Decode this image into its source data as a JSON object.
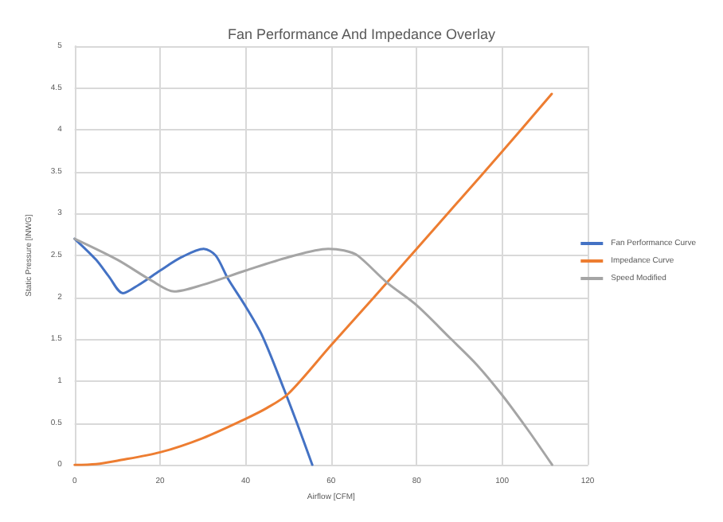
{
  "chart_data": {
    "type": "line",
    "title": "Fan Performance And Impedance Overlay",
    "xlabel": "Airflow [CFM]",
    "ylabel": "Static Pressure [INWG]",
    "series": [
      {
        "name": "Fan Performance Curve",
        "color": "#4472c4",
        "x": [
          0,
          5,
          8,
          11.3,
          15,
          20,
          25,
          30.2,
          33,
          35.9,
          39.9,
          43.9,
          49,
          52,
          55.6
        ],
        "values": [
          2.7,
          2.45,
          2.25,
          2.05,
          2.15,
          2.32,
          2.48,
          2.58,
          2.5,
          2.22,
          1.9,
          1.54,
          0.9,
          0.5,
          0
        ]
      },
      {
        "name": "Impedance Curve",
        "color": "#ed7d31",
        "x": [
          0,
          5,
          10,
          20,
          30,
          40,
          45,
          50,
          60,
          70,
          80,
          90,
          100,
          111.6
        ],
        "values": [
          0,
          0.01,
          0.05,
          0.15,
          0.32,
          0.55,
          0.68,
          0.85,
          1.43,
          2.0,
          2.58,
          3.16,
          3.74,
          4.43
        ]
      },
      {
        "name": "Speed Modified",
        "color": "#a5a5a5",
        "x": [
          0,
          10,
          18,
          23.3,
          30,
          40,
          50,
          59.3,
          63,
          66.2,
          73,
          79.9,
          87.9,
          94,
          99.9,
          106,
          111.7
        ],
        "values": [
          2.7,
          2.45,
          2.2,
          2.07,
          2.15,
          2.32,
          2.48,
          2.58,
          2.56,
          2.5,
          2.18,
          1.91,
          1.51,
          1.2,
          0.84,
          0.42,
          0
        ]
      }
    ],
    "xlim": [
      0,
      120
    ],
    "xticks": [
      0,
      20,
      40,
      60,
      80,
      100,
      120
    ],
    "ylim": [
      0,
      5
    ],
    "yticks": [
      0,
      0.5,
      1,
      1.5,
      2,
      2.5,
      3,
      3.5,
      4,
      4.5,
      5
    ],
    "grid": true,
    "legend": "right",
    "marker": "none",
    "line_style": "solid"
  }
}
